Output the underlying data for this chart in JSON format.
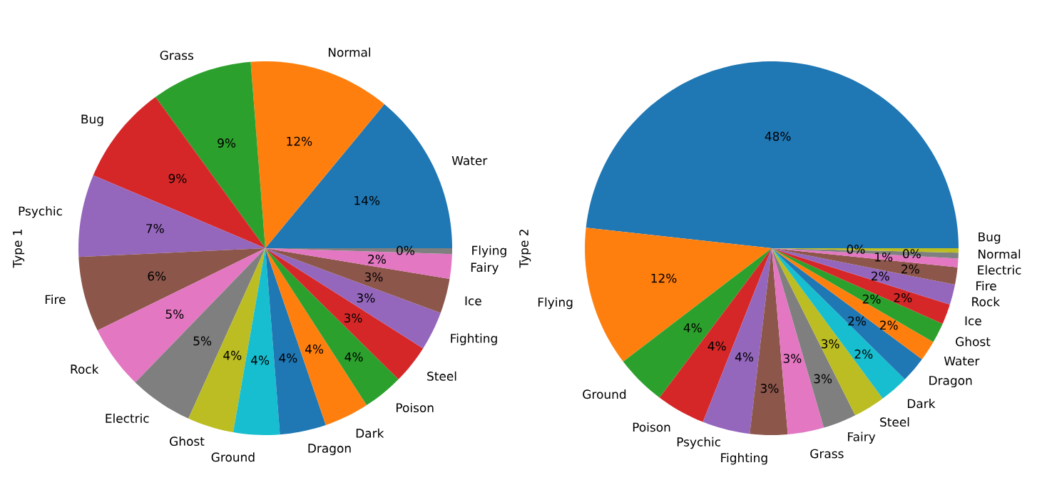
{
  "chart_data": [
    {
      "type": "pie",
      "ylabel": "Type 1",
      "categories": [
        "Water",
        "Normal",
        "Grass",
        "Bug",
        "Psychic",
        "Fire",
        "Rock",
        "Electric",
        "Ghost",
        "Ground",
        "Dragon",
        "Dark",
        "Poison",
        "Steel",
        "Fighting",
        "Ice",
        "Fairy",
        "Flying"
      ],
      "values": [
        14,
        12.25,
        8.75,
        8.625,
        7.125,
        6.5,
        5.5,
        5.5,
        4,
        4,
        4,
        3.875,
        3.5,
        3.375,
        3.375,
        3,
        2.125,
        0.5
      ],
      "value_labels": [
        "14%",
        "12%",
        "9%",
        "9%",
        "7%",
        "6%",
        "5%",
        "5%",
        "4%",
        "4%",
        "4%",
        "4%",
        "4%",
        "3%",
        "3%",
        "3%",
        "2%",
        "0%"
      ],
      "colors": [
        "#1f77b4",
        "#ff7f0e",
        "#2ca02c",
        "#d62728",
        "#9467bd",
        "#8c564b",
        "#e377c2",
        "#7f7f7f",
        "#bcbd22",
        "#17becf",
        "#1f77b4",
        "#ff7f0e",
        "#2ca02c",
        "#d62728",
        "#9467bd",
        "#8c564b",
        "#e377c2",
        "#7f7f7f"
      ]
    },
    {
      "type": "pie",
      "ylabel": "Type 2",
      "categories": [
        null,
        "Flying",
        "Ground",
        "Poison",
        "Psychic",
        "Fighting",
        "Grass",
        "Fairy",
        "Steel",
        "Dark",
        "Dragon",
        "Water",
        "Ghost",
        "Ice",
        "Rock",
        "Fire",
        "Electric",
        "Normal",
        "Bug"
      ],
      "values": [
        48.25,
        12.125,
        4.375,
        4.25,
        4.125,
        3.25,
        3.125,
        2.875,
        2.75,
        2.5,
        2.25,
        1.75,
        1.75,
        1.75,
        1.75,
        1.5,
        0.75,
        0.5,
        0.375
      ],
      "value_labels": [
        "48%",
        "12%",
        "4%",
        "4%",
        "4%",
        "3%",
        "3%",
        "3%",
        "3%",
        "2%",
        "2%",
        "2%",
        "2%",
        "2%",
        "2%",
        "2%",
        "1%",
        "0%",
        "0%"
      ],
      "colors": [
        "#1f77b4",
        "#ff7f0e",
        "#2ca02c",
        "#d62728",
        "#9467bd",
        "#8c564b",
        "#e377c2",
        "#7f7f7f",
        "#bcbd22",
        "#17becf",
        "#1f77b4",
        "#ff7f0e",
        "#2ca02c",
        "#d62728",
        "#9467bd",
        "#8c564b",
        "#e377c2",
        "#7f7f7f",
        "#bcbd22"
      ]
    }
  ]
}
